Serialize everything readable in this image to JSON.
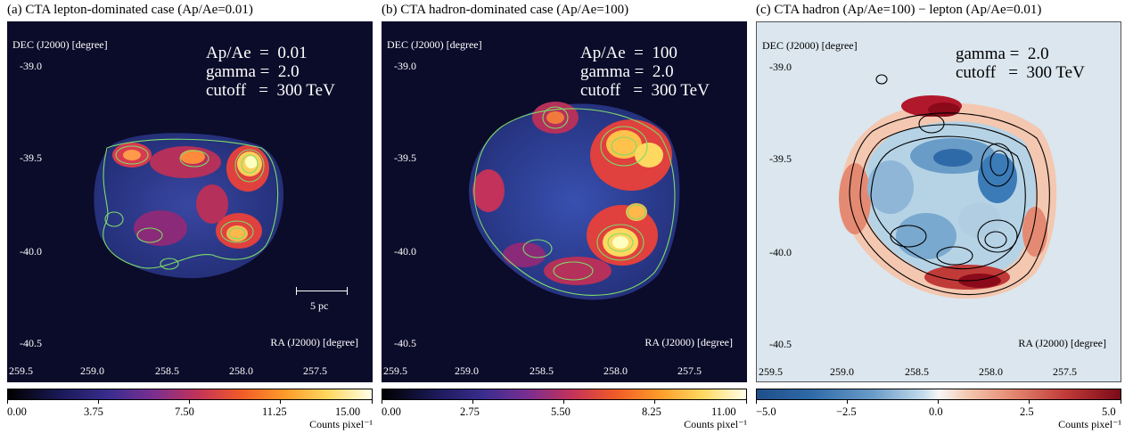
{
  "panels": [
    {
      "title": "(a) CTA lepton-dominated case (Ap/Ae=0.01)",
      "dec_label": "DEC (J2000) [degree]",
      "ra_label": "RA (J2000) [degree]",
      "dec_ticks": [
        "-39.0",
        "-39.5",
        "-40.0",
        "-40.5"
      ],
      "ra_ticks": [
        "259.5",
        "259.0",
        "258.5",
        "258.0",
        "257.5"
      ],
      "params": "Ap/Ae  =  0.01\ngamma =  2.0\ncutoff   =  300 TeV",
      "scale_label": "5 pc",
      "colorbar_ticks": [
        "0.00",
        "3.75",
        "7.50",
        "11.25",
        "15.00"
      ],
      "colorbar_unit": "Counts pixel⁻¹"
    },
    {
      "title": "(b) CTA hadron-dominated case (Ap/Ae=100)",
      "dec_label": "DEC (J2000) [degree]",
      "ra_label": "RA (J2000) [degree]",
      "dec_ticks": [
        "-39.0",
        "-39.5",
        "-40.0",
        "-40.5"
      ],
      "ra_ticks": [
        "259.5",
        "259.0",
        "258.5",
        "258.0",
        "257.5"
      ],
      "params": "Ap/Ae  =  100\ngamma =  2.0\ncutoff   =  300 TeV",
      "colorbar_ticks": [
        "0.00",
        "2.75",
        "5.50",
        "8.25",
        "11.00"
      ],
      "colorbar_unit": "Counts pixel⁻¹"
    },
    {
      "title": "(c) CTA hadron (Ap/Ae=100) − lepton (Ap/Ae=0.01)",
      "dec_label": "DEC (J2000) [degree]",
      "ra_label": "RA (J2000) [degree]",
      "dec_ticks": [
        "-39.0",
        "-39.5",
        "-40.0",
        "-40.5"
      ],
      "ra_ticks": [
        "259.5",
        "259.0",
        "258.5",
        "258.0",
        "257.5"
      ],
      "params": "gamma =  2.0\ncutoff   =  300 TeV",
      "colorbar_ticks": [
        "−5.0",
        "−2.5",
        "0.0",
        "2.5",
        "5.0"
      ],
      "colorbar_unit": "Counts pixel⁻¹"
    }
  ],
  "colors": {
    "map_background": "#0b0b2a",
    "remnant_low": "#2a3d8f",
    "remnant_high": "#ffffc0",
    "contour_green": "#7ddc6a",
    "diff_negative": "#2166ac",
    "diff_positive": "#8b0a1a",
    "diff_background": "#dbe6ee"
  }
}
